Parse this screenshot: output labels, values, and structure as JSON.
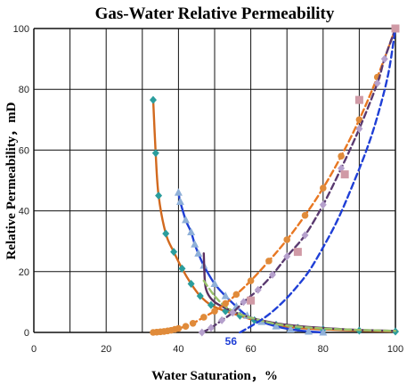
{
  "chart_data": {
    "type": "line",
    "title": "Gas-Water Relative Permeability",
    "xlabel": "Water Saturation，%",
    "ylabel": "Relative Permeability，mD",
    "xlim": [
      0,
      100
    ],
    "ylim": [
      0,
      100
    ],
    "xticks": [
      0,
      20,
      40,
      60,
      80,
      100
    ],
    "yticks": [
      0,
      20,
      40,
      60,
      80,
      100
    ],
    "grid": true,
    "annotation": {
      "text": "56",
      "x": 56,
      "color": "#1f3fd6"
    },
    "series": [
      {
        "id": "krg-orange",
        "color": "#d2691e",
        "marker": "diamond",
        "marker_color": "#2a9d9d",
        "dash": "solid",
        "points": [
          [
            33,
            76.5
          ],
          [
            33.7,
            59
          ],
          [
            34.5,
            45
          ],
          [
            36.5,
            32.5
          ],
          [
            38.7,
            26.5
          ],
          [
            41,
            21
          ],
          [
            43.5,
            16
          ],
          [
            46,
            12
          ],
          [
            49,
            9
          ],
          [
            53,
            7
          ],
          [
            57,
            5.5
          ],
          [
            61,
            4
          ],
          [
            67,
            2.5
          ],
          [
            73,
            1.5
          ],
          [
            80,
            1
          ],
          [
            90,
            0.6
          ],
          [
            100,
            0.3
          ]
        ]
      },
      {
        "id": "krg-blue",
        "color": "#1f3fd6",
        "marker": "triangle",
        "marker_color": "#8fb0d8",
        "dash": "solid",
        "points": [
          [
            40,
            46
          ],
          [
            40.5,
            43
          ],
          [
            42,
            37
          ],
          [
            43.5,
            33
          ],
          [
            44.5,
            29
          ],
          [
            45.5,
            26
          ],
          [
            47,
            22
          ],
          [
            50,
            16
          ],
          [
            53,
            12
          ],
          [
            56,
            8.5
          ],
          [
            59,
            5.5
          ],
          [
            63,
            3.5
          ],
          [
            67,
            2
          ],
          [
            71,
            1
          ],
          [
            76,
            0.3
          ],
          [
            80,
            0
          ]
        ]
      },
      {
        "id": "krg-purple",
        "color": "#5a3060",
        "marker": "none",
        "dash": "solid",
        "points": [
          [
            47,
            26
          ],
          [
            47.3,
            17
          ],
          [
            48,
            13
          ],
          [
            50,
            10
          ],
          [
            53,
            8
          ],
          [
            57,
            6
          ],
          [
            61,
            4.5
          ],
          [
            67,
            3
          ],
          [
            74,
            2
          ],
          [
            82,
            1.3
          ],
          [
            90,
            0.8
          ],
          [
            100,
            0.5
          ]
        ]
      },
      {
        "id": "krg-green",
        "color": "#9ac36a",
        "marker": "none",
        "dash": "dash",
        "points": [
          [
            47,
            17
          ],
          [
            50,
            12
          ],
          [
            53,
            8.5
          ],
          [
            57,
            6
          ],
          [
            61,
            4.5
          ],
          [
            66,
            3
          ],
          [
            72,
            2
          ],
          [
            80,
            1.3
          ],
          [
            90,
            0.8
          ],
          [
            100,
            0.5
          ]
        ]
      },
      {
        "id": "krw-orange",
        "color": "#e87722",
        "marker": "circle",
        "marker_color": "#e08b3a",
        "dash": "dash",
        "points": [
          [
            33,
            0
          ],
          [
            34,
            0.1
          ],
          [
            35,
            0.2
          ],
          [
            36,
            0.3
          ],
          [
            37,
            0.5
          ],
          [
            38,
            0.7
          ],
          [
            39,
            1
          ],
          [
            40,
            1.3
          ],
          [
            42,
            2
          ],
          [
            44,
            3
          ],
          [
            47,
            5
          ],
          [
            50,
            7
          ],
          [
            53,
            9.5
          ],
          [
            56,
            12.5
          ],
          [
            60,
            17
          ],
          [
            65,
            23.5
          ],
          [
            70,
            30.5
          ],
          [
            75,
            38.5
          ],
          [
            80,
            47.5
          ],
          [
            85,
            58
          ],
          [
            90,
            70
          ],
          [
            95,
            84
          ],
          [
            100,
            100
          ]
        ]
      },
      {
        "id": "krw-purple",
        "color": "#5a3a70",
        "marker": "diamond",
        "marker_color": "#b5a0cc",
        "dash": "dash",
        "points": [
          [
            46.5,
            0
          ],
          [
            49,
            1.5
          ],
          [
            52,
            4
          ],
          [
            55,
            6.5
          ],
          [
            58,
            10
          ],
          [
            62,
            14
          ],
          [
            66,
            19
          ],
          [
            70,
            25
          ],
          [
            75,
            32
          ],
          [
            80,
            42
          ],
          [
            85,
            54
          ],
          [
            90,
            67
          ],
          [
            95,
            82
          ],
          [
            97,
            90
          ],
          [
            100,
            100
          ]
        ]
      },
      {
        "id": "krw-blue",
        "color": "#1f3fd6",
        "marker": "none",
        "dash": "dash",
        "points": [
          [
            57,
            0
          ],
          [
            60,
            2
          ],
          [
            64,
            5
          ],
          [
            68,
            9
          ],
          [
            72,
            14
          ],
          [
            76,
            20
          ],
          [
            80,
            28
          ],
          [
            84,
            37
          ],
          [
            88,
            48
          ],
          [
            92,
            60
          ],
          [
            95,
            71
          ],
          [
            98,
            85
          ],
          [
            100,
            100
          ]
        ]
      },
      {
        "id": "krw-pink",
        "color": "#c47a85",
        "marker": "square",
        "marker_color": "#d09aa6",
        "dash": "none",
        "points": [
          [
            60,
            10.5
          ],
          [
            73,
            26.5
          ],
          [
            86,
            52
          ],
          [
            90,
            76.5
          ],
          [
            100,
            100
          ]
        ]
      }
    ]
  }
}
